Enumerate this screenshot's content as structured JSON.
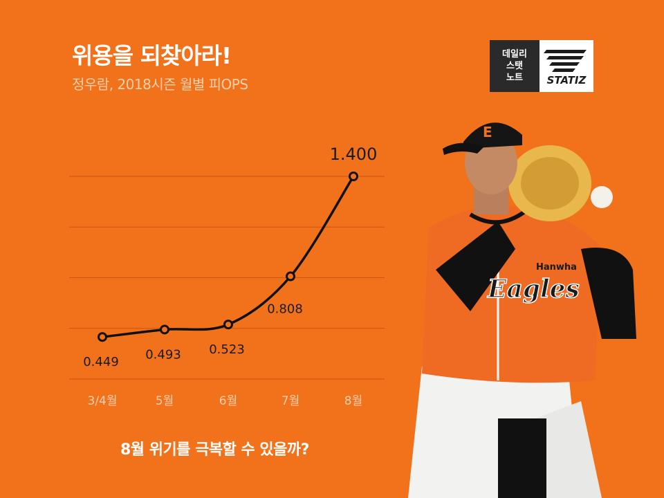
{
  "header": {
    "title": "위용을 되찾아라!",
    "subtitle": "정우람, 2018시즌 월별 피OPS"
  },
  "logo": {
    "lines": [
      "데일리",
      "스탯",
      "노트"
    ],
    "brand": "STATIZ"
  },
  "footer": {
    "question": "8월 위기를 극복할 수 있을까?"
  },
  "player": {
    "cap_letter": "E",
    "jersey_brand": "Hanwha",
    "jersey_team": "Eagles"
  },
  "colors": {
    "background": "#f2721c",
    "line": "#111111",
    "grid": "#c8560f",
    "tick": "#fbd0ae",
    "point_fill": "#f2721c"
  },
  "chart_data": {
    "type": "line",
    "categories": [
      "3/4월",
      "5월",
      "6월",
      "7월",
      "8월"
    ],
    "values": [
      0.449,
      0.493,
      0.523,
      0.808,
      1.4
    ],
    "labels": [
      "0.449",
      "0.493",
      "0.523",
      "0.808",
      "1.400"
    ],
    "title": "위용을 되찾아라!",
    "subtitle": "정우람, 2018시즌 월별 피OPS",
    "xlabel": "",
    "ylabel": "",
    "ylim": [
      0.2,
      1.4
    ],
    "grid": true,
    "legend": "none"
  }
}
